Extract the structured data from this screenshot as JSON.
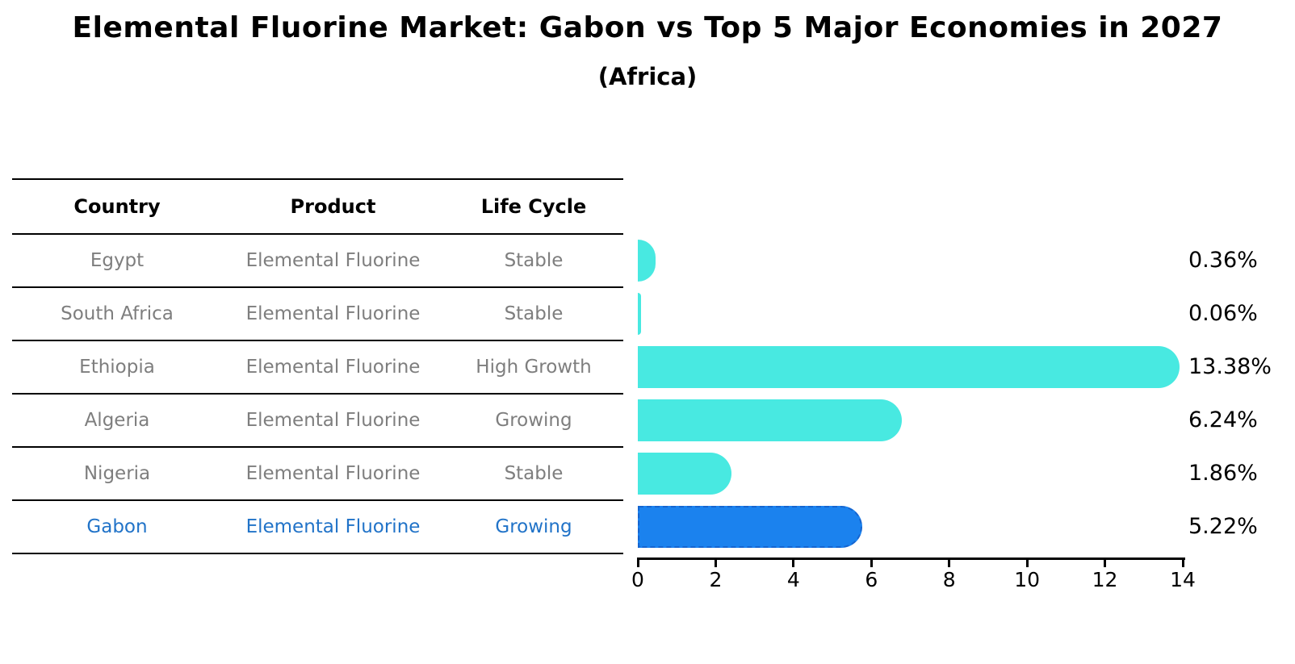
{
  "header": {
    "title": "Elemental Fluorine Market: Gabon vs Top 5 Major Economies in 2027",
    "subtitle": "(Africa)"
  },
  "table": {
    "columns": [
      "Country",
      "Product",
      "Life Cycle"
    ],
    "rows": [
      {
        "country": "Egypt",
        "product": "Elemental Fluorine",
        "life_cycle": "Stable",
        "share_label": "0.36%",
        "highlight": false
      },
      {
        "country": "South Africa",
        "product": "Elemental Fluorine",
        "life_cycle": "Stable",
        "share_label": "0.06%",
        "highlight": false
      },
      {
        "country": "Ethiopia",
        "product": "Elemental Fluorine",
        "life_cycle": "High Growth",
        "share_label": "13.38%",
        "highlight": false
      },
      {
        "country": "Algeria",
        "product": "Elemental Fluorine",
        "life_cycle": "Growing",
        "share_label": "6.24%",
        "highlight": false
      },
      {
        "country": "Nigeria",
        "product": "Elemental Fluorine",
        "life_cycle": "Stable",
        "share_label": "1.86%",
        "highlight": false
      },
      {
        "country": "Gabon",
        "product": "Elemental Fluorine",
        "life_cycle": "Growing",
        "share_label": "5.22%",
        "highlight": true
      }
    ]
  },
  "chart_data": {
    "type": "bar",
    "orientation": "horizontal",
    "title": "Elemental Fluorine Market: Gabon vs Top 5 Major Economies in 2027 (Africa)",
    "categories": [
      "Egypt",
      "South Africa",
      "Ethiopia",
      "Algeria",
      "Nigeria",
      "Gabon"
    ],
    "values": [
      0.36,
      0.06,
      13.38,
      6.24,
      1.86,
      5.22
    ],
    "value_labels": [
      "0.36%",
      "0.06%",
      "13.38%",
      "6.24%",
      "1.86%",
      "5.22%"
    ],
    "xlabel": "",
    "ylabel": "",
    "xlim": [
      0,
      14
    ],
    "x_ticks": [
      0,
      2,
      4,
      6,
      8,
      10,
      12,
      14
    ],
    "grid": false,
    "legend": "none",
    "highlight_index": 5,
    "highlight_style": "dashed-border"
  },
  "colors": {
    "bar_default": "#48e9e1",
    "bar_highlight": "#1b82ee",
    "bar_highlight_edge": "#1565d0",
    "highlight_text": "#2173c8",
    "table_text": "#7e7e7e",
    "axis": "#000000"
  }
}
